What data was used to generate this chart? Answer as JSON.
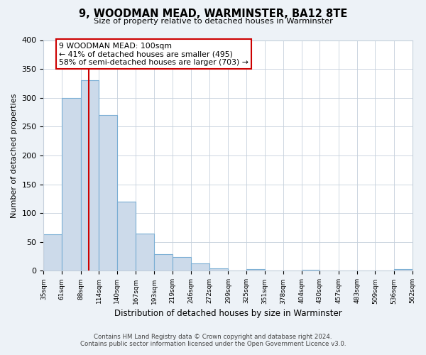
{
  "title": "9, WOODMAN MEAD, WARMINSTER, BA12 8TE",
  "subtitle": "Size of property relative to detached houses in Warminster",
  "xlabel": "Distribution of detached houses by size in Warminster",
  "ylabel": "Number of detached properties",
  "bin_edges": [
    35,
    61,
    88,
    114,
    140,
    167,
    193,
    219,
    246,
    272,
    299,
    325,
    351,
    378,
    404,
    430,
    457,
    483,
    509,
    536,
    562
  ],
  "bin_counts": [
    63,
    300,
    330,
    270,
    120,
    65,
    29,
    24,
    13,
    4,
    0,
    3,
    0,
    0,
    2,
    0,
    0,
    0,
    0,
    3
  ],
  "bar_color": "#ccdaea",
  "bar_edge_color": "#7aaed4",
  "property_sqm": 100,
  "vline_color": "#cc0000",
  "annotation_text": "9 WOODMAN MEAD: 100sqm\n← 41% of detached houses are smaller (495)\n58% of semi-detached houses are larger (703) →",
  "annotation_box_color": "#ffffff",
  "annotation_box_edge_color": "#cc0000",
  "ylim": [
    0,
    400
  ],
  "tick_labels": [
    "35sqm",
    "61sqm",
    "88sqm",
    "114sqm",
    "140sqm",
    "167sqm",
    "193sqm",
    "219sqm",
    "246sqm",
    "272sqm",
    "299sqm",
    "325sqm",
    "351sqm",
    "378sqm",
    "404sqm",
    "430sqm",
    "457sqm",
    "483sqm",
    "509sqm",
    "536sqm",
    "562sqm"
  ],
  "footer1": "Contains HM Land Registry data © Crown copyright and database right 2024.",
  "footer2": "Contains public sector information licensed under the Open Government Licence v3.0.",
  "background_color": "#edf2f7",
  "plot_bg_color": "#ffffff",
  "grid_color": "#c5d0dc"
}
